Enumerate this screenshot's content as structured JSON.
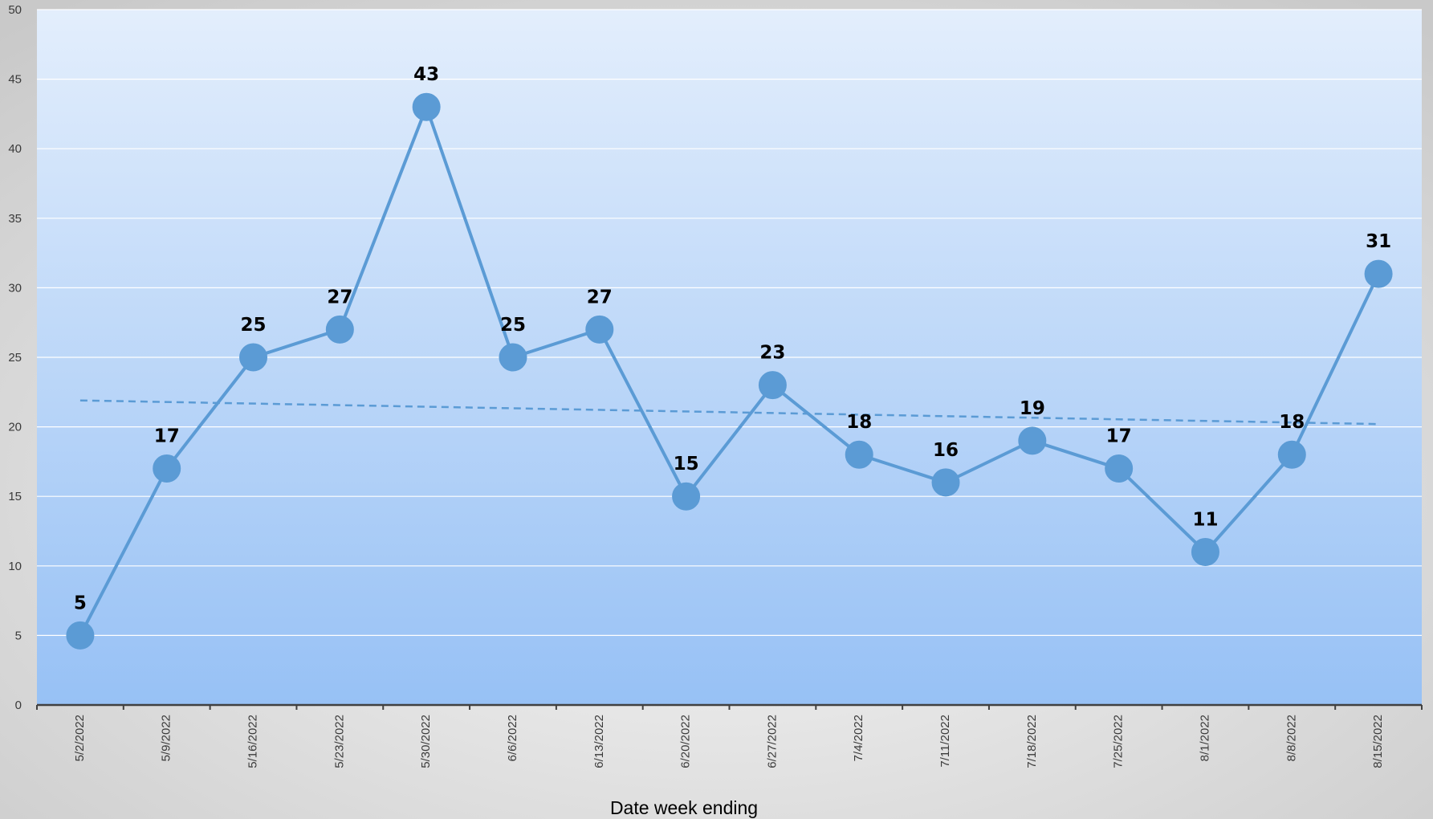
{
  "chart_data": {
    "type": "line",
    "title": "",
    "xlabel": "Date week ending",
    "ylabel": "",
    "categories": [
      "5/2/2022",
      "5/9/2022",
      "5/16/2022",
      "5/23/2022",
      "5/30/2022",
      "6/6/2022",
      "6/13/2022",
      "6/20/2022",
      "6/27/2022",
      "7/4/2022",
      "7/11/2022",
      "7/18/2022",
      "7/25/2022",
      "8/1/2022",
      "8/8/2022",
      "8/15/2022"
    ],
    "series": [
      {
        "values": [
          5,
          17,
          25,
          27,
          43,
          25,
          27,
          15,
          23,
          18,
          16,
          19,
          17,
          11,
          18,
          31
        ]
      }
    ],
    "trendline": {
      "type": "linear",
      "start": 21.9,
      "end": 20.2
    },
    "ylim": [
      0,
      50
    ],
    "yticks": [
      0,
      5,
      10,
      15,
      20,
      25,
      30,
      35,
      40,
      45,
      50
    ],
    "grid": true,
    "data_labels": true,
    "colors": {
      "series": "#5b9bd5",
      "plot_top": "#e3eefc",
      "plot_bottom": "#97c1f5",
      "frame_outer": "#c9c9c9",
      "frame_inner": "#f7f7f7",
      "gridline": "#ffffff",
      "axis": "#404040"
    }
  }
}
